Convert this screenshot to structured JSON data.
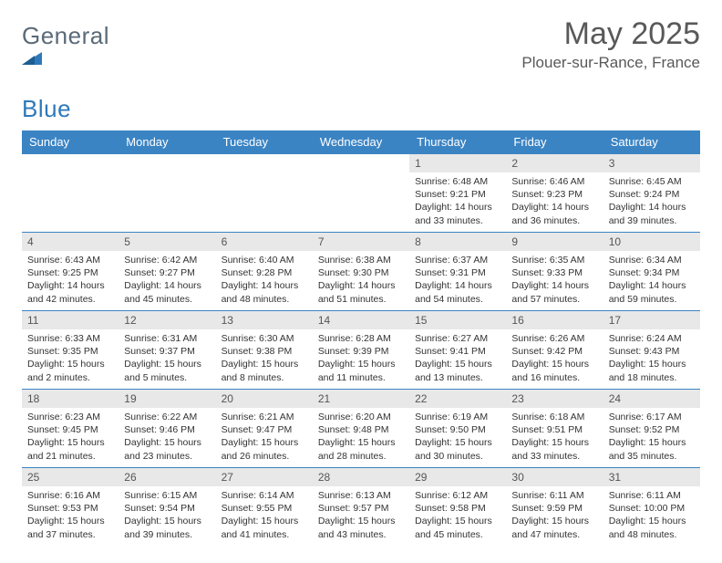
{
  "brand": {
    "part1": "General",
    "part2": "Blue"
  },
  "title": "May 2025",
  "location": "Plouer-sur-Rance, France",
  "colors": {
    "header_bg": "#3b84c4",
    "header_text": "#ffffff",
    "daynum_bg": "#e8e8e8",
    "row_border": "#3b84c4",
    "title_color": "#595959",
    "logo_grey": "#5a6a78",
    "logo_blue": "#2e79b9"
  },
  "weekdays": [
    "Sunday",
    "Monday",
    "Tuesday",
    "Wednesday",
    "Thursday",
    "Friday",
    "Saturday"
  ],
  "weeks": [
    [
      null,
      null,
      null,
      null,
      {
        "n": "1",
        "sr": "Sunrise: 6:48 AM",
        "ss": "Sunset: 9:21 PM",
        "d1": "Daylight: 14 hours",
        "d2": "and 33 minutes."
      },
      {
        "n": "2",
        "sr": "Sunrise: 6:46 AM",
        "ss": "Sunset: 9:23 PM",
        "d1": "Daylight: 14 hours",
        "d2": "and 36 minutes."
      },
      {
        "n": "3",
        "sr": "Sunrise: 6:45 AM",
        "ss": "Sunset: 9:24 PM",
        "d1": "Daylight: 14 hours",
        "d2": "and 39 minutes."
      }
    ],
    [
      {
        "n": "4",
        "sr": "Sunrise: 6:43 AM",
        "ss": "Sunset: 9:25 PM",
        "d1": "Daylight: 14 hours",
        "d2": "and 42 minutes."
      },
      {
        "n": "5",
        "sr": "Sunrise: 6:42 AM",
        "ss": "Sunset: 9:27 PM",
        "d1": "Daylight: 14 hours",
        "d2": "and 45 minutes."
      },
      {
        "n": "6",
        "sr": "Sunrise: 6:40 AM",
        "ss": "Sunset: 9:28 PM",
        "d1": "Daylight: 14 hours",
        "d2": "and 48 minutes."
      },
      {
        "n": "7",
        "sr": "Sunrise: 6:38 AM",
        "ss": "Sunset: 9:30 PM",
        "d1": "Daylight: 14 hours",
        "d2": "and 51 minutes."
      },
      {
        "n": "8",
        "sr": "Sunrise: 6:37 AM",
        "ss": "Sunset: 9:31 PM",
        "d1": "Daylight: 14 hours",
        "d2": "and 54 minutes."
      },
      {
        "n": "9",
        "sr": "Sunrise: 6:35 AM",
        "ss": "Sunset: 9:33 PM",
        "d1": "Daylight: 14 hours",
        "d2": "and 57 minutes."
      },
      {
        "n": "10",
        "sr": "Sunrise: 6:34 AM",
        "ss": "Sunset: 9:34 PM",
        "d1": "Daylight: 14 hours",
        "d2": "and 59 minutes."
      }
    ],
    [
      {
        "n": "11",
        "sr": "Sunrise: 6:33 AM",
        "ss": "Sunset: 9:35 PM",
        "d1": "Daylight: 15 hours",
        "d2": "and 2 minutes."
      },
      {
        "n": "12",
        "sr": "Sunrise: 6:31 AM",
        "ss": "Sunset: 9:37 PM",
        "d1": "Daylight: 15 hours",
        "d2": "and 5 minutes."
      },
      {
        "n": "13",
        "sr": "Sunrise: 6:30 AM",
        "ss": "Sunset: 9:38 PM",
        "d1": "Daylight: 15 hours",
        "d2": "and 8 minutes."
      },
      {
        "n": "14",
        "sr": "Sunrise: 6:28 AM",
        "ss": "Sunset: 9:39 PM",
        "d1": "Daylight: 15 hours",
        "d2": "and 11 minutes."
      },
      {
        "n": "15",
        "sr": "Sunrise: 6:27 AM",
        "ss": "Sunset: 9:41 PM",
        "d1": "Daylight: 15 hours",
        "d2": "and 13 minutes."
      },
      {
        "n": "16",
        "sr": "Sunrise: 6:26 AM",
        "ss": "Sunset: 9:42 PM",
        "d1": "Daylight: 15 hours",
        "d2": "and 16 minutes."
      },
      {
        "n": "17",
        "sr": "Sunrise: 6:24 AM",
        "ss": "Sunset: 9:43 PM",
        "d1": "Daylight: 15 hours",
        "d2": "and 18 minutes."
      }
    ],
    [
      {
        "n": "18",
        "sr": "Sunrise: 6:23 AM",
        "ss": "Sunset: 9:45 PM",
        "d1": "Daylight: 15 hours",
        "d2": "and 21 minutes."
      },
      {
        "n": "19",
        "sr": "Sunrise: 6:22 AM",
        "ss": "Sunset: 9:46 PM",
        "d1": "Daylight: 15 hours",
        "d2": "and 23 minutes."
      },
      {
        "n": "20",
        "sr": "Sunrise: 6:21 AM",
        "ss": "Sunset: 9:47 PM",
        "d1": "Daylight: 15 hours",
        "d2": "and 26 minutes."
      },
      {
        "n": "21",
        "sr": "Sunrise: 6:20 AM",
        "ss": "Sunset: 9:48 PM",
        "d1": "Daylight: 15 hours",
        "d2": "and 28 minutes."
      },
      {
        "n": "22",
        "sr": "Sunrise: 6:19 AM",
        "ss": "Sunset: 9:50 PM",
        "d1": "Daylight: 15 hours",
        "d2": "and 30 minutes."
      },
      {
        "n": "23",
        "sr": "Sunrise: 6:18 AM",
        "ss": "Sunset: 9:51 PM",
        "d1": "Daylight: 15 hours",
        "d2": "and 33 minutes."
      },
      {
        "n": "24",
        "sr": "Sunrise: 6:17 AM",
        "ss": "Sunset: 9:52 PM",
        "d1": "Daylight: 15 hours",
        "d2": "and 35 minutes."
      }
    ],
    [
      {
        "n": "25",
        "sr": "Sunrise: 6:16 AM",
        "ss": "Sunset: 9:53 PM",
        "d1": "Daylight: 15 hours",
        "d2": "and 37 minutes."
      },
      {
        "n": "26",
        "sr": "Sunrise: 6:15 AM",
        "ss": "Sunset: 9:54 PM",
        "d1": "Daylight: 15 hours",
        "d2": "and 39 minutes."
      },
      {
        "n": "27",
        "sr": "Sunrise: 6:14 AM",
        "ss": "Sunset: 9:55 PM",
        "d1": "Daylight: 15 hours",
        "d2": "and 41 minutes."
      },
      {
        "n": "28",
        "sr": "Sunrise: 6:13 AM",
        "ss": "Sunset: 9:57 PM",
        "d1": "Daylight: 15 hours",
        "d2": "and 43 minutes."
      },
      {
        "n": "29",
        "sr": "Sunrise: 6:12 AM",
        "ss": "Sunset: 9:58 PM",
        "d1": "Daylight: 15 hours",
        "d2": "and 45 minutes."
      },
      {
        "n": "30",
        "sr": "Sunrise: 6:11 AM",
        "ss": "Sunset: 9:59 PM",
        "d1": "Daylight: 15 hours",
        "d2": "and 47 minutes."
      },
      {
        "n": "31",
        "sr": "Sunrise: 6:11 AM",
        "ss": "Sunset: 10:00 PM",
        "d1": "Daylight: 15 hours",
        "d2": "and 48 minutes."
      }
    ]
  ]
}
